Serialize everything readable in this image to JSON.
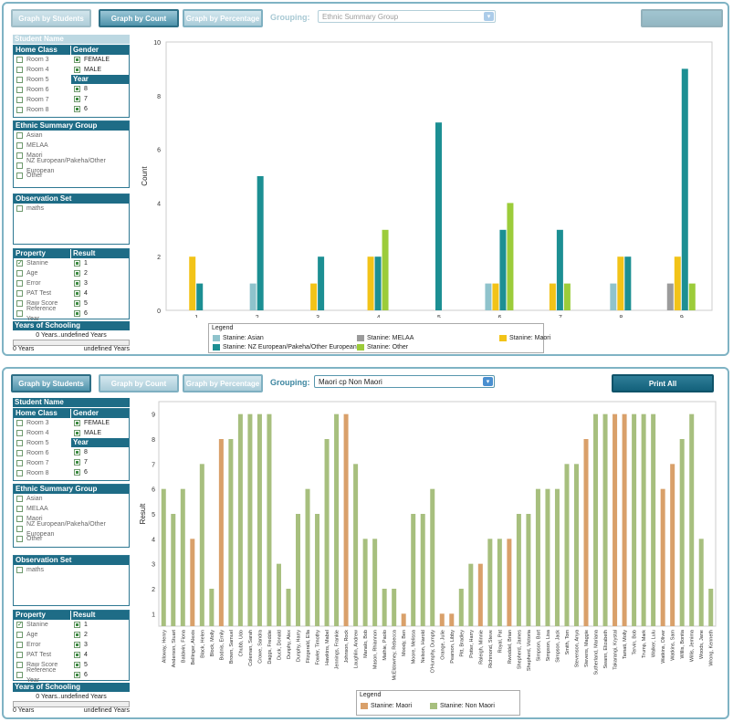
{
  "panel1": {
    "buttons": {
      "students": "Graph by Students",
      "count": "Graph by Count",
      "percentage": "Graph by Percentage"
    },
    "grouping_label": "Grouping:",
    "grouping_value": "Ethnic Summary Group",
    "sidebar": {
      "student_name": "Student Name",
      "home_class": "Home Class",
      "gender": "Gender",
      "rooms": [
        "Room 3",
        "Room 4",
        "Room 5",
        "Room 6",
        "Room 7",
        "Room 8"
      ],
      "genders": [
        "FEMALE",
        "MALE"
      ],
      "year": "Year",
      "years": [
        "8",
        "7",
        "6"
      ],
      "ethnic_group": "Ethnic Summary Group",
      "ethnic_items": [
        "Asian",
        "MELAA",
        "Maori",
        "NZ European/Pakeha/Other European",
        "Other"
      ],
      "observation_set": "Observation Set",
      "obs_items": [
        "maths"
      ],
      "property": "Property",
      "result": "Result",
      "properties": [
        "Stanine",
        "Age",
        "Error",
        "PAT Test",
        "Raw Score",
        "Reference Year"
      ],
      "results": [
        "1",
        "2",
        "3",
        "4",
        "5",
        "6"
      ],
      "years_schooling": "Years of Schooling",
      "range_text": "0 Years..undefined Years",
      "range_min": "0 Years",
      "range_max": "undefined Years"
    },
    "legend_title": "Legend",
    "legend": [
      {
        "name": "Stanine: Asian",
        "color": "#8fc3cc"
      },
      {
        "name": "Stanine: MELAA",
        "color": "#9b9b9b"
      },
      {
        "name": "Stanine: Maori",
        "color": "#f2c318"
      },
      {
        "name": "Stanine: NZ European/Pakeha/Other European",
        "color": "#1c8f93"
      },
      {
        "name": "Stanine: Other",
        "color": "#9ccc3a"
      }
    ]
  },
  "panel2": {
    "buttons": {
      "students": "Graph by Students",
      "count": "Graph by Count",
      "percentage": "Graph by Percentage",
      "print": "Print All"
    },
    "grouping_label": "Grouping:",
    "grouping_value": "Maori cp Non Maori",
    "sidebar": {
      "student_name": "Student Name",
      "home_class": "Home Class",
      "gender": "Gender",
      "rooms": [
        "Room 3",
        "Room 4",
        "Room 5",
        "Room 6",
        "Room 7",
        "Room 8"
      ],
      "genders": [
        "FEMALE",
        "MALE"
      ],
      "year": "Year",
      "years": [
        "8",
        "7",
        "6"
      ],
      "ethnic_group": "Ethnic Summary Group",
      "ethnic_items": [
        "Asian",
        "MELAA",
        "Maori",
        "NZ European/Pakeha/Other European",
        "Other"
      ],
      "observation_set": "Observation Set",
      "obs_items": [
        "maths"
      ],
      "property": "Property",
      "result": "Result",
      "properties": [
        "Stanine",
        "Age",
        "Error",
        "PAT Test",
        "Raw Score",
        "Reference Year"
      ],
      "results": [
        "1",
        "2",
        "3",
        "4",
        "5",
        "6"
      ],
      "years_schooling": "Years of Schooling",
      "range_text": "0 Years..undefined Years",
      "range_min": "0 Years",
      "range_max": "undefined Years"
    },
    "legend_title": "Legend",
    "legend": [
      {
        "name": "Stanine: Maori",
        "color": "#d9a06a"
      },
      {
        "name": "Stanine: Non Maori",
        "color": "#a7bf7e"
      }
    ]
  },
  "chart_data": [
    {
      "type": "bar",
      "ylabel": "Count",
      "ylim": [
        0,
        10
      ],
      "yticks": [
        0,
        2,
        4,
        6,
        8,
        10
      ],
      "categories": [
        "1",
        "2",
        "3",
        "4",
        "5",
        "6",
        "7",
        "8",
        "9"
      ],
      "series": [
        {
          "name": "Stanine: Asian",
          "color": "#8fc3cc",
          "values": [
            0,
            1,
            0,
            0,
            0,
            1,
            0,
            1,
            0
          ]
        },
        {
          "name": "Stanine: MELAA",
          "color": "#9b9b9b",
          "values": [
            0,
            0,
            0,
            0,
            0,
            0,
            0,
            0,
            1
          ]
        },
        {
          "name": "Stanine: Maori",
          "color": "#f2c318",
          "values": [
            2,
            0,
            1,
            2,
            0,
            1,
            1,
            2,
            2
          ]
        },
        {
          "name": "Stanine: NZ European/Pakeha/Other European",
          "color": "#1c8f93",
          "values": [
            1,
            5,
            2,
            2,
            7,
            3,
            3,
            2,
            9
          ]
        },
        {
          "name": "Stanine: Other",
          "color": "#9ccc3a",
          "values": [
            0,
            0,
            0,
            3,
            0,
            4,
            1,
            0,
            1
          ]
        }
      ],
      "legend": "bottom"
    },
    {
      "type": "bar",
      "ylabel": "Result",
      "ylim": [
        0.5,
        9.5
      ],
      "yticks": [
        1,
        2,
        3,
        4,
        5,
        6,
        7,
        8,
        9
      ],
      "categories": [
        "Alloway, Henry",
        "Anderson, Stuart",
        "Baldwin, Fiona",
        "Bellinger, Alexis",
        "Black, Helen",
        "Block, Molly",
        "Bodnis, Emily",
        "Brown, Samuel",
        "Chubb, Udo",
        "Coleman, Sarah",
        "Crowe, Sandra",
        "Daggs, Freddie",
        "Duck, Donald",
        "Dunphy, Alex",
        "Dunphy, Harry",
        "Fitzgerald, Ella",
        "Fowler, Timothy",
        "Hawkins, Mabel",
        "Jennings, Frankie",
        "Johnson, Rock",
        "Laughlin, Andrew",
        "Manalo, Bob",
        "Mason, Rhiannon",
        "Mathie, Paolo",
        "McEldowney, Rebecca",
        "Moody, Ben",
        "Moore, Melissa",
        "Nelson, Harold",
        "O'Humphy, Dumpty",
        "Orange, Julie",
        "Pearson, Libby",
        "Pitt, Bradley",
        "Potter, Harry",
        "Raleigh, Minnie",
        "Richmond, Steve",
        "Royal, Pat",
        "Rwoddel, Brian",
        "Shepherd, James",
        "Shepherd, Victoria",
        "Simpson, Bart",
        "Simpson, Lisa",
        "Simpson, Jack",
        "Smith, Tom",
        "Stevenson, Anya",
        "Stevens, Maggie",
        "Sutherland, Mariana",
        "Swann, Elizabeth",
        "Takarangi, Krystal",
        "Tamati, Molly",
        "Tervin, Bob",
        "Trump, Mark",
        "Walker, Lulu",
        "Watkins, Oliver",
        "Watkins, Sam",
        "Willis, Bonita",
        "Willis, Jemima",
        "Woods, Jane",
        "Wrong, Kenneth"
      ],
      "values": [
        6,
        5,
        6,
        4,
        7,
        2,
        8,
        8,
        9,
        9,
        9,
        9,
        3,
        2,
        5,
        6,
        5,
        8,
        9,
        9,
        7,
        4,
        4,
        2,
        2,
        1,
        5,
        5,
        6,
        1,
        1,
        2,
        3,
        3,
        4,
        4,
        4,
        5,
        5,
        6,
        6,
        6,
        7,
        7,
        8,
        9,
        9,
        9,
        9,
        9,
        9,
        9,
        6,
        7,
        8,
        9,
        4,
        2
      ],
      "group": [
        "N",
        "N",
        "N",
        "M",
        "N",
        "N",
        "M",
        "N",
        "N",
        "N",
        "N",
        "N",
        "N",
        "N",
        "N",
        "N",
        "N",
        "N",
        "N",
        "M",
        "N",
        "N",
        "N",
        "N",
        "N",
        "M",
        "N",
        "N",
        "N",
        "M",
        "M",
        "N",
        "N",
        "M",
        "N",
        "N",
        "M",
        "N",
        "N",
        "N",
        "N",
        "N",
        "N",
        "N",
        "M",
        "N",
        "N",
        "M",
        "M",
        "N",
        "N",
        "N",
        "M",
        "M",
        "N",
        "N",
        "N",
        "N"
      ],
      "series": [
        {
          "name": "Stanine: Maori",
          "color": "#d9a06a"
        },
        {
          "name": "Stanine: Non Maori",
          "color": "#a7bf7e"
        }
      ],
      "legend": "bottom"
    }
  ]
}
